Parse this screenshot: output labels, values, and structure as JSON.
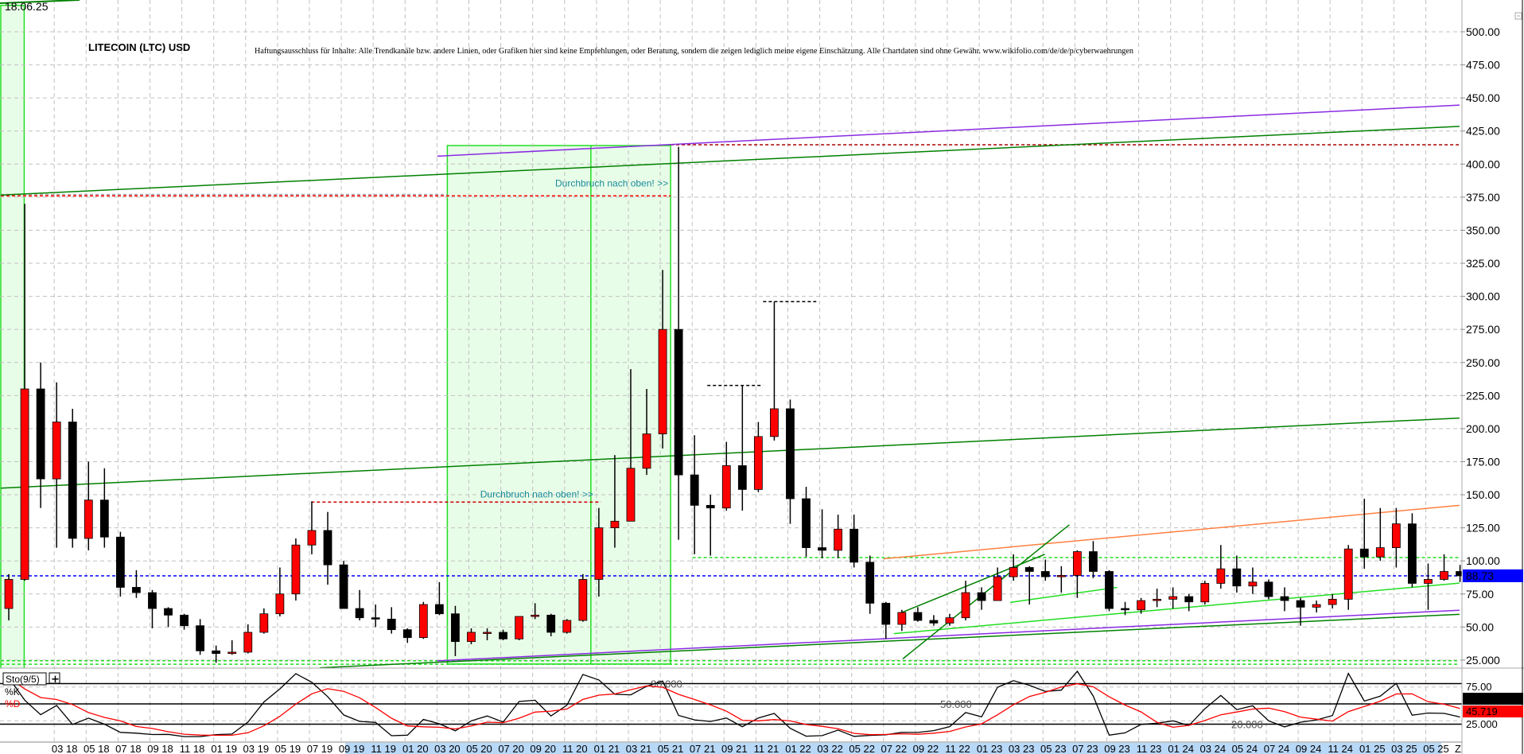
{
  "header": {
    "date": "18.06.25",
    "title": "LITECOIN (LTC) USD",
    "disclaimer": "Haftungsausschluss für Inhalte: Alle Trendkanäle bzw. andere Linien, oder Grafiken hier sind keine Empfehlungen, oder Beratung, sondern die zeigen lediglich meine eigene Einschätzung. Alle Chartdaten sind ohne Gewähr.  www.wikifolio.com/de/de/p/cyberwaehrungen"
  },
  "colors": {
    "up": "#ff0000",
    "down": "#000000",
    "price_marker": "#0000ff",
    "k_line": "#000000",
    "d_line": "#ff0000",
    "zone": "#e8fde8",
    "zone_border": "#22dd22",
    "trend_green": "#008000",
    "trend_purple": "#8a2be2",
    "trend_lightgreen": "#22dd22",
    "trend_orange": "#ff8040"
  },
  "chart_data": [
    {
      "type": "candlestick",
      "title": "LITECOIN (LTC) USD",
      "ylim": [
        0,
        520
      ],
      "y_ticks": [
        "500.00",
        "475.00",
        "450.00",
        "425.00",
        "400.00",
        "375.00",
        "350.00",
        "325.00",
        "300.00",
        "275.00",
        "250.00",
        "225.00",
        "200.00",
        "175.00",
        "150.00",
        "125.00",
        "100.00",
        "75.00",
        "50.00",
        "25.000"
      ],
      "x_ticks": [
        "03 18",
        "05 18",
        "07 18",
        "09 18",
        "11 18",
        "01 19",
        "03 19",
        "05 19",
        "07 19",
        "09 19",
        "11 19",
        "01 20",
        "03 20",
        "05 20",
        "07 20",
        "09 20",
        "11 20",
        "01 21",
        "03 21",
        "05 21",
        "07 21",
        "09 21",
        "11 21",
        "01 22",
        "03 22",
        "05 22",
        "07 22",
        "09 22",
        "11 22",
        "01 23",
        "03 23",
        "05 23",
        "07 23",
        "09 23",
        "11 23",
        "01 24",
        "03 24",
        "05 24",
        "07 24",
        "09 24",
        "11 24",
        "01 25",
        "03 25",
        "05 25"
      ],
      "x_end_label": "Z",
      "grid": true,
      "last_price": "88.73",
      "months": [
        "2017-11",
        "2017-12",
        "2018-01",
        "2018-02",
        "2018-03",
        "2018-04",
        "2018-05",
        "2018-06",
        "2018-07",
        "2018-08",
        "2018-09",
        "2018-10",
        "2018-11",
        "2018-12",
        "2019-01",
        "2019-02",
        "2019-03",
        "2019-04",
        "2019-05",
        "2019-06",
        "2019-07",
        "2019-08",
        "2019-09",
        "2019-10",
        "2019-11",
        "2019-12",
        "2020-01",
        "2020-02",
        "2020-03",
        "2020-04",
        "2020-05",
        "2020-06",
        "2020-07",
        "2020-08",
        "2020-09",
        "2020-10",
        "2020-11",
        "2020-12",
        "2021-01",
        "2021-02",
        "2021-03",
        "2021-04",
        "2021-05",
        "2021-06",
        "2021-07",
        "2021-08",
        "2021-09",
        "2021-10",
        "2021-11",
        "2021-12",
        "2022-01",
        "2022-02",
        "2022-03",
        "2022-04",
        "2022-05",
        "2022-06",
        "2022-07",
        "2022-08",
        "2022-09",
        "2022-10",
        "2022-11",
        "2022-12",
        "2023-01",
        "2023-02",
        "2023-03",
        "2023-04",
        "2023-05",
        "2023-06",
        "2023-07",
        "2023-08",
        "2023-09",
        "2023-10",
        "2023-11",
        "2023-12",
        "2024-01",
        "2024-02",
        "2024-03",
        "2024-04",
        "2024-05",
        "2024-06",
        "2024-07",
        "2024-08",
        "2024-09",
        "2024-10",
        "2024-11",
        "2024-12",
        "2025-01",
        "2025-02",
        "2025-03",
        "2025-04",
        "2025-05",
        "2025-06"
      ],
      "ohlc": [
        [
          64,
          90,
          55,
          86
        ],
        [
          86,
          370,
          85,
          230
        ],
        [
          230,
          250,
          140,
          162
        ],
        [
          162,
          235,
          110,
          205
        ],
        [
          205,
          215,
          110,
          117
        ],
        [
          117,
          175,
          108,
          146
        ],
        [
          146,
          170,
          110,
          118
        ],
        [
          118,
          122,
          73,
          80
        ],
        [
          80,
          93,
          72,
          76
        ],
        [
          76,
          78,
          49,
          64
        ],
        [
          64,
          65,
          50,
          59
        ],
        [
          59,
          60,
          48,
          51
        ],
        [
          51,
          56,
          29,
          32
        ],
        [
          32,
          36,
          23,
          30
        ],
        [
          30,
          40,
          29,
          31
        ],
        [
          31,
          52,
          30,
          46
        ],
        [
          46,
          64,
          45,
          60
        ],
        [
          60,
          95,
          58,
          75
        ],
        [
          75,
          117,
          70,
          112
        ],
        [
          112,
          145,
          105,
          123
        ],
        [
          123,
          137,
          82,
          97
        ],
        [
          97,
          100,
          66,
          64
        ],
        [
          64,
          78,
          55,
          57
        ],
        [
          57,
          67,
          50,
          56
        ],
        [
          56,
          65,
          45,
          48
        ],
        [
          48,
          49,
          38,
          42
        ],
        [
          42,
          69,
          41,
          67
        ],
        [
          67,
          84,
          59,
          60
        ],
        [
          60,
          66,
          28,
          39
        ],
        [
          39,
          49,
          37,
          46
        ],
        [
          46,
          49,
          40,
          46
        ],
        [
          46,
          48,
          40,
          41
        ],
        [
          41,
          58,
          40,
          58
        ],
        [
          58,
          68,
          56,
          59
        ],
        [
          59,
          60,
          43,
          46
        ],
        [
          46,
          56,
          45,
          55
        ],
        [
          55,
          90,
          54,
          86
        ],
        [
          86,
          140,
          73,
          125
        ],
        [
          125,
          180,
          110,
          130
        ],
        [
          130,
          245,
          130,
          170
        ],
        [
          170,
          230,
          165,
          196
        ],
        [
          196,
          320,
          185,
          275
        ],
        [
          275,
          413,
          116,
          165
        ],
        [
          165,
          195,
          105,
          142
        ],
        [
          142,
          150,
          104,
          140
        ],
        [
          140,
          190,
          138,
          172
        ],
        [
          172,
          233,
          138,
          154
        ],
        [
          154,
          205,
          152,
          194
        ],
        [
          194,
          296,
          191,
          215
        ],
        [
          215,
          222,
          128,
          147
        ],
        [
          147,
          156,
          103,
          110
        ],
        [
          110,
          139,
          102,
          108
        ],
        [
          108,
          135,
          102,
          124
        ],
        [
          124,
          135,
          95,
          99
        ],
        [
          99,
          104,
          60,
          68
        ],
        [
          68,
          69,
          41,
          52
        ],
        [
          52,
          63,
          47,
          61
        ],
        [
          61,
          65,
          54,
          55
        ],
        [
          55,
          59,
          51,
          53
        ],
        [
          53,
          60,
          51,
          57
        ],
        [
          57,
          85,
          55,
          76
        ],
        [
          76,
          80,
          63,
          70
        ],
        [
          70,
          95,
          70,
          88
        ],
        [
          88,
          105,
          85,
          95
        ],
        [
          95,
          96,
          67,
          92
        ],
        [
          92,
          101,
          85,
          88
        ],
        [
          88,
          96,
          76,
          89
        ],
        [
          89,
          108,
          72,
          107
        ],
        [
          107,
          115,
          87,
          92
        ],
        [
          92,
          93,
          62,
          64
        ],
        [
          64,
          69,
          59,
          63
        ],
        [
          63,
          72,
          60,
          70
        ],
        [
          70,
          79,
          65,
          71
        ],
        [
          71,
          80,
          64,
          73
        ],
        [
          73,
          75,
          62,
          69
        ],
        [
          69,
          85,
          67,
          83
        ],
        [
          83,
          112,
          79,
          94
        ],
        [
          94,
          104,
          76,
          81
        ],
        [
          81,
          95,
          75,
          84
        ],
        [
          84,
          86,
          71,
          73
        ],
        [
          73,
          80,
          62,
          70
        ],
        [
          70,
          72,
          51,
          65
        ],
        [
          65,
          70,
          61,
          67
        ],
        [
          67,
          75,
          64,
          71
        ],
        [
          71,
          112,
          63,
          109
        ],
        [
          109,
          147,
          94,
          103
        ],
        [
          103,
          140,
          100,
          110
        ],
        [
          110,
          140,
          95,
          128
        ],
        [
          128,
          136,
          80,
          83
        ],
        [
          83,
          98,
          63,
          86
        ],
        [
          86,
          105,
          85,
          92
        ],
        [
          92,
          97,
          84,
          88.73
        ]
      ],
      "trendlines": [
        {
          "color": "trend_green",
          "from": [
            "2017-11-01",
            376.6
          ],
          "to": [
            "2025-06-15",
            428.5
          ]
        },
        {
          "color": "trend_purple",
          "from": [
            "2020-02-12",
            406
          ],
          "to": [
            "2025-06-15",
            444.6
          ]
        },
        {
          "color": "trend_green",
          "from": [
            "2017-11-01",
            155
          ],
          "to": [
            "2025-06-15",
            208
          ]
        },
        {
          "color": "trend_purple",
          "from": [
            "2020-02-12",
            24.4
          ],
          "to": [
            "2025-06-15",
            62.7
          ]
        },
        {
          "color": "trend_green",
          "from": [
            "2019-07-01",
            19.2
          ],
          "to": [
            "2025-06-15",
            59.6
          ]
        },
        {
          "color": "trend_lightgreen",
          "from": [
            "2022-07-01",
            45
          ],
          "to": [
            "2025-06-15",
            83.2
          ]
        },
        {
          "color": "trend_orange",
          "from": [
            "2022-06-12",
            101.6
          ],
          "to": [
            "2025-06-15",
            142
          ]
        },
        {
          "color": "trend_green",
          "from": [
            "2022-07-18",
            26
          ],
          "to": [
            "2023-06-01",
            127.3
          ]
        },
        {
          "color": "trend_green",
          "from": [
            "2022-07-10",
            60
          ],
          "to": [
            "2023-04-15",
            105
          ]
        },
        {
          "color": "trend_lightgreen",
          "from": [
            "2023-02-10",
            68.6
          ],
          "to": [
            "2023-09-01",
            80
          ]
        }
      ],
      "dashed_lines": [
        {
          "color": "#ff0000",
          "price": 376,
          "from": "2017-11-01",
          "to": "2021-05-01"
        },
        {
          "color": "#aa0000",
          "price": 414.6,
          "from": "2021-05-01",
          "to": "2025-06-15"
        },
        {
          "color": "#cc0000",
          "price": 144.5,
          "from": "2019-06-15",
          "to": "2020-12-20"
        },
        {
          "color": "#000000",
          "price": 296,
          "from": "2021-10-25",
          "to": "2022-02-05"
        },
        {
          "color": "#000000",
          "price": 232.6,
          "from": "2021-07-10",
          "to": "2021-10-25"
        },
        {
          "color": "#22dd22",
          "price": 102.5,
          "from": "2021-06-12",
          "to": "2025-06-15"
        },
        {
          "color": "#22dd22",
          "price": 24.5,
          "from": "2017-11-01",
          "to": "2025-06-15"
        },
        {
          "color": "#22dd22",
          "price": 21.9,
          "from": "2017-11-01",
          "to": "2025-06-15"
        },
        {
          "color": "#aaaaaa",
          "price": 377,
          "from": "2017-11-01",
          "to": "2020-03-01"
        },
        {
          "color": "#0000ff",
          "price": 88.73,
          "from": "2017-11-01",
          "to": "2025-06-15"
        }
      ],
      "zones": [
        {
          "from": "2020-03-01",
          "to": "2021-05-01",
          "top": 414,
          "bottom": 22,
          "divider": "2020-12-01"
        },
        {
          "from": "2017-11-01",
          "to": "2017-12-15",
          "top": 520,
          "bottom": 0
        }
      ],
      "annotations": [
        {
          "text": "Durchbruch nach oben! >>",
          "date": "2021-05-01",
          "price": 383
        },
        {
          "text": "Durchbruch nach oben! >>",
          "date": "2020-12-10",
          "price": 148
        }
      ]
    },
    {
      "type": "line",
      "indicator": "Sto(9/5)",
      "series": [
        {
          "name": "%K",
          "color": "k_line"
        },
        {
          "name": "%D",
          "color": "d_line"
        }
      ],
      "ylim": [
        0,
        100
      ],
      "levels": [
        80,
        50,
        20
      ],
      "level_labels": [
        "80.000",
        "50.000",
        "20.000"
      ],
      "y_ticks": [
        "75.00",
        "25.000"
      ],
      "k_last": "53.29",
      "d_last": "45.719"
    }
  ]
}
